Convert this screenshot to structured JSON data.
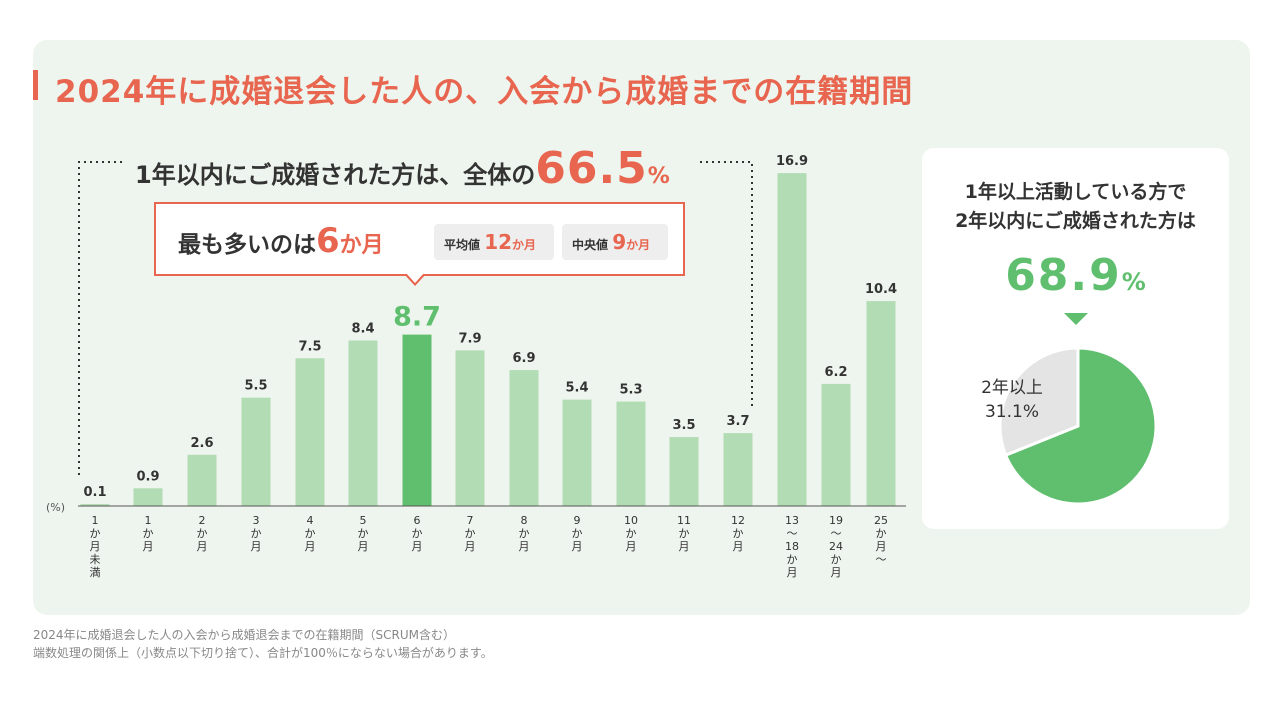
{
  "title": "2024年に成婚退会した人の、入会から成婚までの在籍期間",
  "summary": {
    "prefix": "1年以内にご成婚された方は、全体の",
    "value": "66.5",
    "unit": "%"
  },
  "callout": {
    "prefix": "最も多いのは",
    "value": "6",
    "unit": "か月",
    "avg_label": "平均値",
    "avg_value": "12",
    "avg_unit": "か月",
    "median_label": "中央値",
    "median_value": "9",
    "median_unit": "か月"
  },
  "pie": {
    "heading_line1": "1年以上活動している方で",
    "heading_line2": "2年以内にご成婚された方は",
    "value": "68.9",
    "unit": "%",
    "other_label": "2年以上",
    "other_value": "31.1%",
    "main_color": "#5fbf6e",
    "other_color": "#e4e4e4"
  },
  "footnote": {
    "line1": "2024年に成婚退会した人の入会から成婚退会までの在籍期間（SCRUM含む）",
    "line2": "端数処理の関係上（小数点以下切り捨て）、合計が100％にならない場合があります。"
  },
  "chart_data": [
    {
      "type": "bar",
      "ylabel": "(%)",
      "categories": [
        "1か月未満",
        "1か月",
        "2か月",
        "3か月",
        "4か月",
        "5か月",
        "6か月",
        "7か月",
        "8か月",
        "9か月",
        "10か月",
        "11か月",
        "12か月",
        "13〜18か月",
        "19〜24か月",
        "25か月〜"
      ],
      "tick_labels": [
        [
          "1",
          "か",
          "月",
          "未",
          "満"
        ],
        [
          "1",
          "か",
          "月"
        ],
        [
          "2",
          "か",
          "月"
        ],
        [
          "3",
          "か",
          "月"
        ],
        [
          "4",
          "か",
          "月"
        ],
        [
          "5",
          "か",
          "月"
        ],
        [
          "6",
          "か",
          "月"
        ],
        [
          "7",
          "か",
          "月"
        ],
        [
          "8",
          "か",
          "月"
        ],
        [
          "9",
          "か",
          "月"
        ],
        [
          "10",
          "か",
          "月"
        ],
        [
          "11",
          "か",
          "月"
        ],
        [
          "12",
          "か",
          "月"
        ],
        [
          "13",
          "〜",
          "18",
          "か",
          "月"
        ],
        [
          "19",
          "〜",
          "24",
          "か",
          "月"
        ],
        [
          "25",
          "か",
          "月",
          "〜"
        ]
      ],
      "values": [
        0.1,
        0.9,
        2.6,
        5.5,
        7.5,
        8.4,
        8.7,
        7.9,
        6.9,
        5.4,
        5.3,
        3.5,
        3.7,
        16.9,
        6.2,
        10.4
      ],
      "value_labels": [
        "0.1",
        "0.9",
        "2.6",
        "5.5",
        "7.5",
        "8.4",
        "8.7",
        "7.9",
        "6.9",
        "5.4",
        "5.3",
        "3.5",
        "3.7",
        "16.9",
        "6.2",
        "10.4"
      ],
      "highlight_index": 6,
      "bar_color": "#b2dcb4",
      "highlight_color": "#5fbf6e",
      "highlight_label_color": "#5fbf6e",
      "grid": false
    },
    {
      "type": "pie",
      "labels": [
        "2年以内",
        "2年以上"
      ],
      "values": [
        68.9,
        31.1
      ]
    }
  ]
}
